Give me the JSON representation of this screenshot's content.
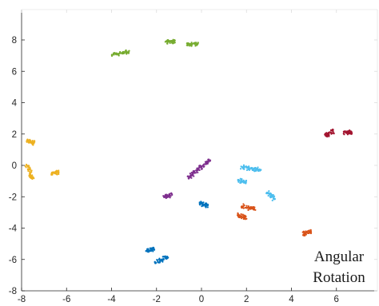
{
  "chart_data": {
    "type": "scatter",
    "title": "",
    "xlabel": "",
    "ylabel": "",
    "xlim": [
      -8,
      7.5
    ],
    "ylim": [
      -8,
      9.8
    ],
    "x_ticks": [
      -8,
      -6,
      -4,
      -2,
      0,
      2,
      4,
      6
    ],
    "y_ticks": [
      -8,
      -6,
      -4,
      -2,
      0,
      2,
      4,
      6,
      8
    ],
    "grid": false,
    "annotation": {
      "line1": "Angular",
      "line2": "Rotation",
      "position": "bottom-right"
    },
    "series": [
      {
        "color": "#77AC30",
        "clusters": [
          {
            "x": -3.6,
            "y": 7.15,
            "len": 0.8,
            "angle": 10
          },
          {
            "x": -1.4,
            "y": 7.9,
            "len": 0.45,
            "angle": 5
          },
          {
            "x": -0.4,
            "y": 7.75,
            "len": 0.5,
            "angle": -3
          }
        ]
      },
      {
        "color": "#EDB120",
        "clusters": [
          {
            "x": -7.6,
            "y": 1.5,
            "len": 0.35,
            "angle": -20
          },
          {
            "x": -7.65,
            "y": -0.4,
            "len": 0.7,
            "angle": -70
          },
          {
            "x": -6.5,
            "y": -0.45,
            "len": 0.35,
            "angle": 0
          }
        ]
      },
      {
        "color": "#A2142F",
        "clusters": [
          {
            "x": 5.7,
            "y": 2.05,
            "len": 0.45,
            "angle": 30
          },
          {
            "x": 6.5,
            "y": 2.1,
            "len": 0.4,
            "angle": 0
          }
        ]
      },
      {
        "color": "#7E2F8E",
        "clusters": [
          {
            "x": -0.1,
            "y": -0.2,
            "len": 1.3,
            "angle": 40
          },
          {
            "x": -1.5,
            "y": -1.95,
            "len": 0.4,
            "angle": 15
          }
        ]
      },
      {
        "color": "#4DBEEE",
        "clusters": [
          {
            "x": 2.2,
            "y": -0.2,
            "len": 0.9,
            "angle": -10
          },
          {
            "x": 1.8,
            "y": -1.0,
            "len": 0.4,
            "angle": -10
          },
          {
            "x": 3.1,
            "y": -1.95,
            "len": 0.5,
            "angle": -45
          }
        ]
      },
      {
        "color": "#D95319",
        "clusters": [
          {
            "x": 2.1,
            "y": -2.7,
            "len": 0.65,
            "angle": -15
          },
          {
            "x": 1.8,
            "y": -3.25,
            "len": 0.45,
            "angle": -15
          },
          {
            "x": 4.7,
            "y": -4.3,
            "len": 0.4,
            "angle": 10
          }
        ]
      },
      {
        "color": "#0072BD",
        "clusters": [
          {
            "x": 0.1,
            "y": -2.5,
            "len": 0.4,
            "angle": -10
          },
          {
            "x": -2.3,
            "y": -5.4,
            "len": 0.4,
            "angle": 15
          },
          {
            "x": -1.8,
            "y": -6.05,
            "len": 0.7,
            "angle": 25
          }
        ]
      }
    ]
  }
}
